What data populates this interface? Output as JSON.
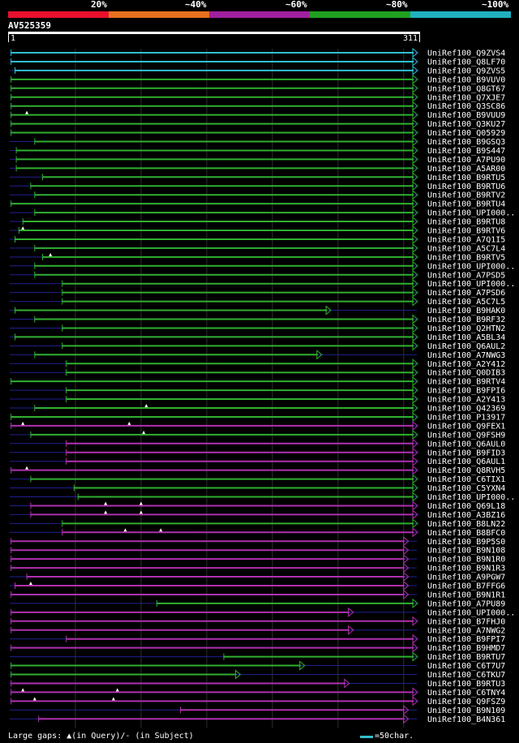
{
  "legend": {
    "labels": [
      "20%",
      "~40%",
      "~60%",
      "~80%",
      "~100%"
    ],
    "colors": [
      "#e8102c",
      "#e87020",
      "#a020a0",
      "#20a020",
      "#20b0c0"
    ]
  },
  "query": {
    "name": "AV525359",
    "start_label": "1",
    "end_label": "311",
    "length": 311
  },
  "colors": {
    "cyan": "#30c0d0",
    "green": "#30b030",
    "purple": "#b030b0",
    "gap": "#202090",
    "grid": "#303030",
    "gap_mark": "#ffffe0"
  },
  "hits": [
    {
      "label": "UniRef100_Q9ZVS4",
      "color": "cyan",
      "start": 2,
      "end": 311,
      "marks": []
    },
    {
      "label": "UniRef100_Q8LF70",
      "color": "cyan",
      "start": 2,
      "end": 311,
      "marks": []
    },
    {
      "label": "UniRef100_Q9ZVS5",
      "color": "cyan",
      "start": 5,
      "end": 311,
      "marks": []
    },
    {
      "label": "UniRef100_B9VUV0",
      "color": "green",
      "start": 2,
      "end": 311,
      "marks": []
    },
    {
      "label": "UniRef100_Q8GT67",
      "color": "green",
      "start": 2,
      "end": 311,
      "marks": []
    },
    {
      "label": "UniRef100_Q7XJE7",
      "color": "green",
      "start": 2,
      "end": 311,
      "marks": []
    },
    {
      "label": "UniRef100_Q3SC86",
      "color": "green",
      "start": 2,
      "end": 311,
      "marks": []
    },
    {
      "label": "UniRef100_B9VUU9",
      "color": "green",
      "start": 2,
      "end": 311,
      "marks": [
        14
      ]
    },
    {
      "label": "UniRef100_Q3KU27",
      "color": "green",
      "start": 2,
      "end": 311,
      "marks": []
    },
    {
      "label": "UniRef100_Q05929",
      "color": "green",
      "start": 2,
      "end": 311,
      "marks": []
    },
    {
      "label": "UniRef100_B9GSQ3",
      "color": "green",
      "start": 20,
      "end": 311,
      "marks": []
    },
    {
      "label": "UniRef100_B9S447",
      "color": "green",
      "start": 6,
      "end": 311,
      "marks": []
    },
    {
      "label": "UniRef100_A7PU90",
      "color": "green",
      "start": 6,
      "end": 311,
      "marks": []
    },
    {
      "label": "UniRef100_A5AR00",
      "color": "green",
      "start": 6,
      "end": 311,
      "marks": []
    },
    {
      "label": "UniRef100_B9RTU5",
      "color": "green",
      "start": 26,
      "end": 311,
      "marks": []
    },
    {
      "label": "UniRef100_B9RTU6",
      "color": "green",
      "start": 17,
      "end": 311,
      "marks": []
    },
    {
      "label": "UniRef100_B9RTV2",
      "color": "green",
      "start": 20,
      "end": 311,
      "marks": []
    },
    {
      "label": "UniRef100_B9RTU4",
      "color": "green",
      "start": 2,
      "end": 311,
      "marks": []
    },
    {
      "label": "UniRef100_UPI000..",
      "color": "green",
      "start": 20,
      "end": 311,
      "marks": []
    },
    {
      "label": "UniRef100_B9RTU8",
      "color": "green",
      "start": 11,
      "end": 311,
      "marks": []
    },
    {
      "label": "UniRef100_B9RTV6",
      "color": "green",
      "start": 8,
      "end": 311,
      "marks": [
        11
      ]
    },
    {
      "label": "UniRef100_A7Q1I5",
      "color": "green",
      "start": 5,
      "end": 311,
      "marks": []
    },
    {
      "label": "UniRef100_A5C7L4",
      "color": "green",
      "start": 20,
      "end": 311,
      "marks": []
    },
    {
      "label": "UniRef100_B9RTV5",
      "color": "green",
      "start": 26,
      "end": 311,
      "marks": [
        32
      ]
    },
    {
      "label": "UniRef100_UPI000..",
      "color": "green",
      "start": 20,
      "end": 311,
      "marks": []
    },
    {
      "label": "UniRef100_A7PSD5",
      "color": "green",
      "start": 20,
      "end": 311,
      "marks": []
    },
    {
      "label": "UniRef100_UPI000..",
      "color": "green",
      "start": 41,
      "end": 311,
      "marks": []
    },
    {
      "label": "UniRef100_A7PSD6",
      "color": "green",
      "start": 41,
      "end": 311,
      "marks": []
    },
    {
      "label": "UniRef100_A5C7L5",
      "color": "green",
      "start": 41,
      "end": 311,
      "marks": []
    },
    {
      "label": "UniRef100_B9HAK0",
      "color": "green",
      "start": 5,
      "end": 245,
      "marks": []
    },
    {
      "label": "UniRef100_B9RF32",
      "color": "green",
      "start": 20,
      "end": 311,
      "marks": []
    },
    {
      "label": "UniRef100_Q2HTN2",
      "color": "green",
      "start": 41,
      "end": 311,
      "marks": []
    },
    {
      "label": "UniRef100_A5BL34",
      "color": "green",
      "start": 5,
      "end": 311,
      "marks": []
    },
    {
      "label": "UniRef100_Q6AUL2",
      "color": "green",
      "start": 41,
      "end": 311,
      "marks": []
    },
    {
      "label": "UniRef100_A7NWG3",
      "color": "green",
      "start": 20,
      "end": 238,
      "marks": []
    },
    {
      "label": "UniRef100_A2Y412",
      "color": "green",
      "start": 44,
      "end": 311,
      "marks": []
    },
    {
      "label": "UniRef100_Q0DIB3",
      "color": "green",
      "start": 44,
      "end": 311,
      "marks": []
    },
    {
      "label": "UniRef100_B9RTV4",
      "color": "green",
      "start": 2,
      "end": 311,
      "marks": []
    },
    {
      "label": "UniRef100_B9FPI6",
      "color": "green",
      "start": 44,
      "end": 311,
      "marks": []
    },
    {
      "label": "UniRef100_A2Y413",
      "color": "green",
      "start": 44,
      "end": 311,
      "marks": []
    },
    {
      "label": "UniRef100_Q42369",
      "color": "green",
      "start": 20,
      "end": 311,
      "marks": [
        105
      ]
    },
    {
      "label": "UniRef100_P13917",
      "color": "green",
      "start": 2,
      "end": 311,
      "marks": []
    },
    {
      "label": "UniRef100_Q9FEX1",
      "color": "purple",
      "start": 2,
      "end": 311,
      "marks": [
        11,
        92
      ]
    },
    {
      "label": "UniRef100_Q9FSH9",
      "color": "green",
      "start": 17,
      "end": 311,
      "marks": [
        103
      ]
    },
    {
      "label": "UniRef100_Q6AUL0",
      "color": "purple",
      "start": 44,
      "end": 311,
      "marks": []
    },
    {
      "label": "UniRef100_B9FID3",
      "color": "purple",
      "start": 44,
      "end": 311,
      "marks": []
    },
    {
      "label": "UniRef100_Q6AUL1",
      "color": "purple",
      "start": 44,
      "end": 311,
      "marks": []
    },
    {
      "label": "UniRef100_Q8RVH5",
      "color": "purple",
      "start": 2,
      "end": 311,
      "marks": [
        14
      ]
    },
    {
      "label": "UniRef100_C6TIX1",
      "color": "green",
      "start": 17,
      "end": 311,
      "marks": []
    },
    {
      "label": "UniRef100_C5YXN4",
      "color": "green",
      "start": 50,
      "end": 311,
      "marks": []
    },
    {
      "label": "UniRef100_UPI000..",
      "color": "green",
      "start": 53,
      "end": 311,
      "marks": []
    },
    {
      "label": "UniRef100_Q69L18",
      "color": "purple",
      "start": 17,
      "end": 311,
      "marks": [
        74,
        101
      ]
    },
    {
      "label": "UniRef100_A3BZ16",
      "color": "purple",
      "start": 17,
      "end": 311,
      "marks": [
        74,
        101
      ]
    },
    {
      "label": "UniRef100_B8LN22",
      "color": "green",
      "start": 41,
      "end": 311,
      "marks": []
    },
    {
      "label": "UniRef100_B8BFC0",
      "color": "purple",
      "start": 41,
      "end": 311,
      "marks": [
        89,
        116
      ]
    },
    {
      "label": "UniRef100_B9P5S0",
      "color": "purple",
      "start": 2,
      "end": 304,
      "marks": []
    },
    {
      "label": "UniRef100_B9N108",
      "color": "purple",
      "start": 2,
      "end": 304,
      "marks": []
    },
    {
      "label": "UniRef100_B9N1R0",
      "color": "purple",
      "start": 2,
      "end": 304,
      "marks": []
    },
    {
      "label": "UniRef100_B9N1R3",
      "color": "purple",
      "start": 2,
      "end": 304,
      "marks": []
    },
    {
      "label": "UniRef100_A9PGW7",
      "color": "purple",
      "start": 14,
      "end": 304,
      "marks": []
    },
    {
      "label": "UniRef100_B7FFG6",
      "color": "purple",
      "start": 5,
      "end": 304,
      "marks": [
        17
      ]
    },
    {
      "label": "UniRef100_B9N1R1",
      "color": "purple",
      "start": 2,
      "end": 304,
      "marks": []
    },
    {
      "label": "UniRef100_A7PU89",
      "color": "green",
      "start": 113,
      "end": 311,
      "marks": []
    },
    {
      "label": "UniRef100_UPI000..",
      "color": "purple",
      "start": 2,
      "end": 262,
      "marks": []
    },
    {
      "label": "UniRef100_B7FHJ0",
      "color": "purple",
      "start": 2,
      "end": 311,
      "marks": []
    },
    {
      "label": "UniRef100_A7NWG2",
      "color": "purple",
      "start": 2,
      "end": 262,
      "marks": []
    },
    {
      "label": "UniRef100_B9FPI7",
      "color": "purple",
      "start": 44,
      "end": 311,
      "marks": []
    },
    {
      "label": "UniRef100_B9HMD7",
      "color": "purple",
      "start": 2,
      "end": 311,
      "marks": []
    },
    {
      "label": "UniRef100_B9RTU7",
      "color": "green",
      "start": 164,
      "end": 311,
      "marks": []
    },
    {
      "label": "UniRef100_C6T7U7",
      "color": "green",
      "start": 2,
      "end": 225,
      "marks": []
    },
    {
      "label": "UniRef100_C6TKU7",
      "color": "green",
      "start": 2,
      "end": 176,
      "marks": []
    },
    {
      "label": "UniRef100_B9RTU3",
      "color": "purple",
      "start": 2,
      "end": 259,
      "marks": []
    },
    {
      "label": "UniRef100_C6TNY4",
      "color": "purple",
      "start": 2,
      "end": 311,
      "marks": [
        11,
        83
      ]
    },
    {
      "label": "UniRef100_Q9FSZ9",
      "color": "purple",
      "start": 2,
      "end": 311,
      "marks": [
        20,
        80
      ]
    },
    {
      "label": "UniRef100_B9N109",
      "color": "purple",
      "start": 131,
      "end": 304,
      "marks": []
    },
    {
      "label": "UniRef100_B4N361",
      "color": "purple",
      "start": 23,
      "end": 304,
      "marks": []
    }
  ],
  "footer": {
    "large_gaps": "Large gaps: ▲(in Query)/- (in Subject)",
    "scale": "=50char."
  }
}
